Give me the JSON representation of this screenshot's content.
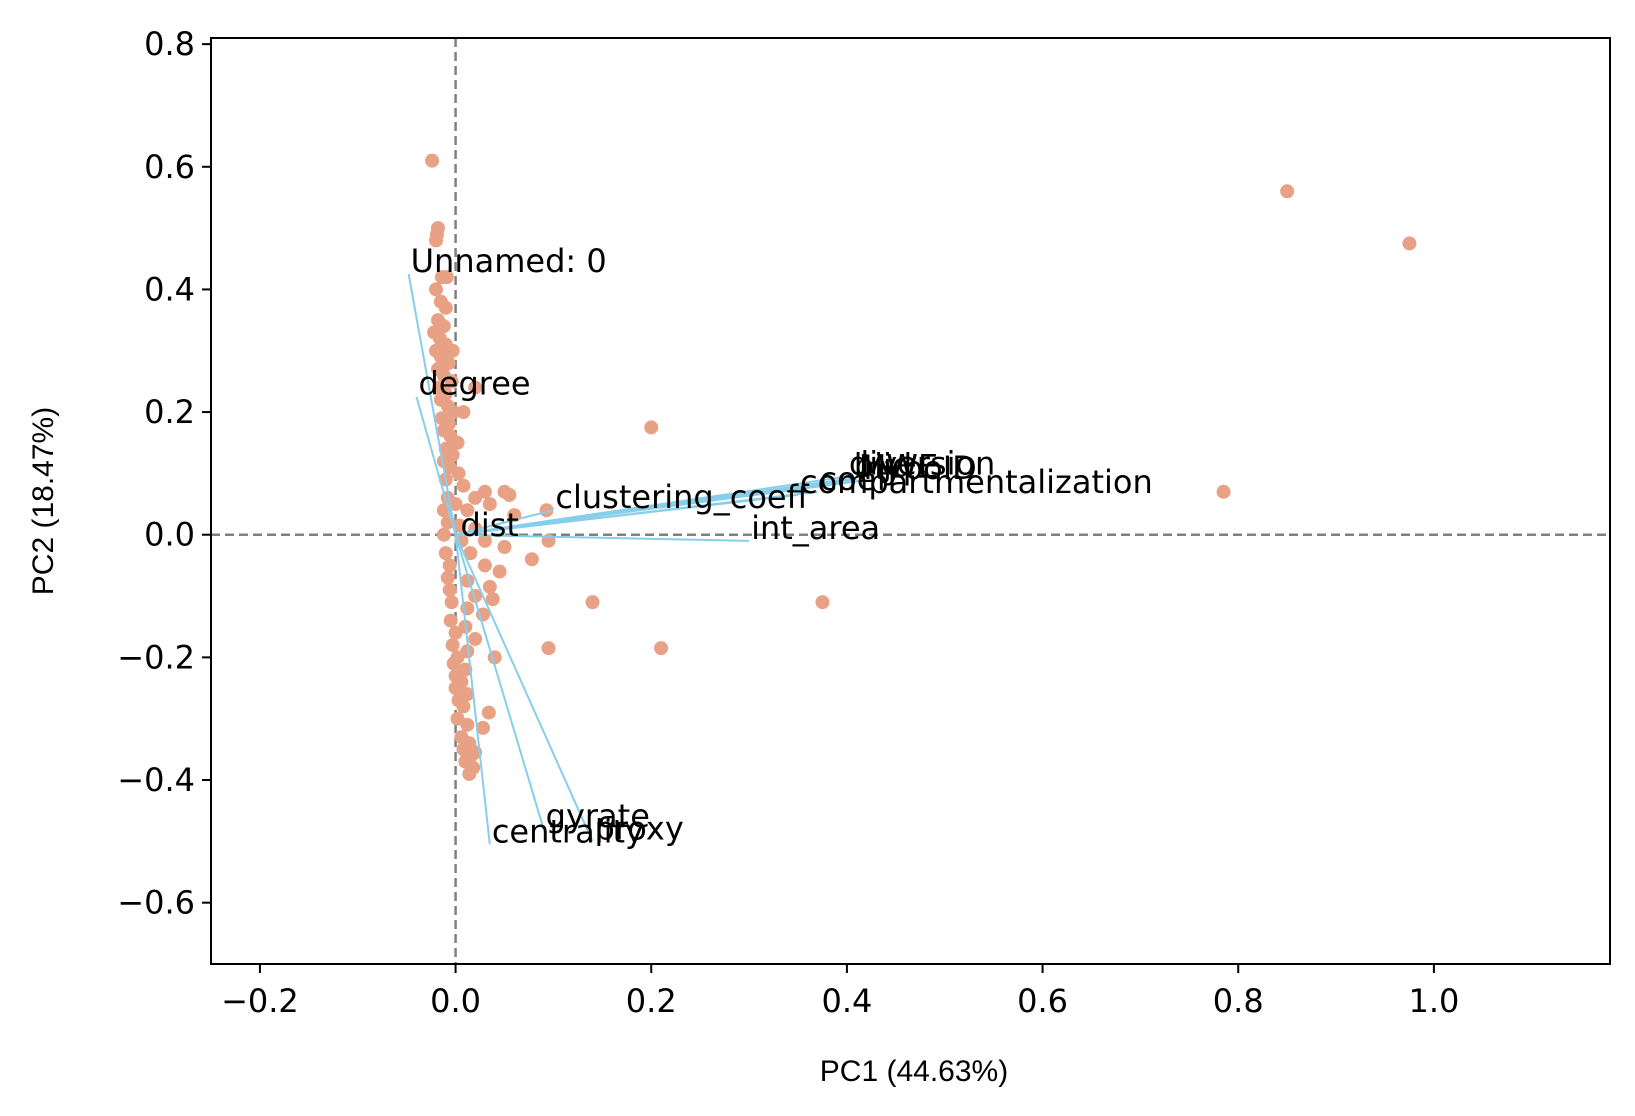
{
  "chart_data": {
    "type": "scatter",
    "title": "",
    "xlabel": "PC1 (44.63%)",
    "ylabel": "PC2 (18.47%)",
    "xlim": [
      -0.25,
      1.18
    ],
    "ylim": [
      -0.7,
      0.81
    ],
    "xticks": [
      -0.2,
      0.0,
      0.2,
      0.4,
      0.6,
      0.8,
      1.0
    ],
    "xtick_labels": [
      "−0.2",
      "0.0",
      "0.2",
      "0.4",
      "0.6",
      "0.8",
      "1.0"
    ],
    "yticks": [
      -0.6,
      -0.4,
      -0.2,
      0.0,
      0.2,
      0.4,
      0.6,
      0.8
    ],
    "ytick_labels": [
      "−0.6",
      "−0.4",
      "−0.2",
      "0.0",
      "0.2",
      "0.4",
      "0.6",
      "0.8"
    ],
    "grid": false,
    "reference_lines": {
      "x": 0.0,
      "y": 0.0,
      "style": "dashed",
      "color": "#808080"
    },
    "colors": {
      "points": "#E9A185",
      "vectors": "#87CEEB"
    },
    "series": [
      {
        "kind": "scores",
        "points": [
          [
            -0.024,
            0.61
          ],
          [
            -0.018,
            0.5
          ],
          [
            -0.019,
            0.49
          ],
          [
            -0.02,
            0.48
          ],
          [
            -0.014,
            0.42
          ],
          [
            -0.009,
            0.42
          ],
          [
            -0.02,
            0.4
          ],
          [
            -0.015,
            0.38
          ],
          [
            -0.01,
            0.37
          ],
          [
            -0.018,
            0.35
          ],
          [
            -0.012,
            0.34
          ],
          [
            -0.022,
            0.33
          ],
          [
            -0.016,
            0.32
          ],
          [
            -0.01,
            0.31
          ],
          [
            -0.003,
            0.3
          ],
          [
            -0.02,
            0.3
          ],
          [
            -0.015,
            0.29
          ],
          [
            -0.007,
            0.28
          ],
          [
            -0.018,
            0.27
          ],
          [
            -0.012,
            0.26
          ],
          [
            -0.004,
            0.25
          ],
          [
            -0.017,
            0.24
          ],
          [
            -0.01,
            0.23
          ],
          [
            0.02,
            0.24
          ],
          [
            -0.015,
            0.22
          ],
          [
            -0.008,
            0.21
          ],
          [
            -0.002,
            0.2
          ],
          [
            0.008,
            0.2
          ],
          [
            -0.014,
            0.19
          ],
          [
            -0.007,
            0.18
          ],
          [
            -0.012,
            0.17
          ],
          [
            -0.005,
            0.16
          ],
          [
            0.002,
            0.15
          ],
          [
            -0.01,
            0.14
          ],
          [
            -0.003,
            0.13
          ],
          [
            -0.012,
            0.12
          ],
          [
            -0.006,
            0.11
          ],
          [
            0.003,
            0.1
          ],
          [
            -0.01,
            0.09
          ],
          [
            0.008,
            0.08
          ],
          [
            0.03,
            0.07
          ],
          [
            0.05,
            0.07
          ],
          [
            0.055,
            0.065
          ],
          [
            0.02,
            0.06
          ],
          [
            -0.008,
            0.06
          ],
          [
            0.0,
            0.05
          ],
          [
            0.035,
            0.05
          ],
          [
            -0.012,
            0.04
          ],
          [
            0.012,
            0.04
          ],
          [
            0.06,
            0.032
          ],
          [
            -0.008,
            0.02
          ],
          [
            0.004,
            0.015
          ],
          [
            0.02,
            0.01
          ],
          [
            -0.012,
            0.0
          ],
          [
            0.006,
            -0.01
          ],
          [
            0.03,
            -0.01
          ],
          [
            0.05,
            -0.02
          ],
          [
            -0.01,
            -0.03
          ],
          [
            0.015,
            -0.03
          ],
          [
            0.078,
            -0.04
          ],
          [
            -0.006,
            -0.05
          ],
          [
            0.03,
            -0.05
          ],
          [
            0.045,
            -0.06
          ],
          [
            -0.008,
            -0.07
          ],
          [
            0.012,
            -0.075
          ],
          [
            0.035,
            -0.085
          ],
          [
            -0.006,
            -0.09
          ],
          [
            0.02,
            -0.1
          ],
          [
            0.038,
            -0.105
          ],
          [
            -0.004,
            -0.11
          ],
          [
            0.012,
            -0.12
          ],
          [
            0.028,
            -0.13
          ],
          [
            -0.005,
            -0.14
          ],
          [
            0.01,
            -0.15
          ],
          [
            0.0,
            -0.16
          ],
          [
            0.02,
            -0.17
          ],
          [
            -0.003,
            -0.18
          ],
          [
            0.012,
            -0.19
          ],
          [
            0.002,
            -0.2
          ],
          [
            0.04,
            -0.2
          ],
          [
            -0.002,
            -0.21
          ],
          [
            0.01,
            -0.22
          ],
          [
            0.0,
            -0.23
          ],
          [
            0.006,
            -0.24
          ],
          [
            0.0,
            -0.25
          ],
          [
            0.012,
            -0.26
          ],
          [
            0.003,
            -0.27
          ],
          [
            0.008,
            -0.28
          ],
          [
            0.034,
            -0.29
          ],
          [
            0.002,
            -0.3
          ],
          [
            0.012,
            -0.31
          ],
          [
            0.028,
            -0.315
          ],
          [
            0.006,
            -0.33
          ],
          [
            0.014,
            -0.34
          ],
          [
            0.008,
            -0.35
          ],
          [
            0.016,
            -0.36
          ],
          [
            0.01,
            -0.37
          ],
          [
            0.018,
            -0.38
          ],
          [
            0.014,
            -0.39
          ],
          [
            0.02,
            -0.355
          ],
          [
            0.093,
            0.04
          ],
          [
            0.095,
            -0.01
          ],
          [
            0.2,
            0.175
          ],
          [
            0.14,
            -0.11
          ],
          [
            0.095,
            -0.185
          ],
          [
            0.21,
            -0.185
          ],
          [
            0.375,
            -0.11
          ],
          [
            0.785,
            0.07
          ],
          [
            0.85,
            0.56
          ],
          [
            0.975,
            0.475
          ]
        ]
      }
    ],
    "loadings": [
      {
        "label": "Unnamed: 0",
        "x": -0.048,
        "y": 0.425
      },
      {
        "label": "degree",
        "x": -0.04,
        "y": 0.225
      },
      {
        "label": "clustering_coeff",
        "x": 0.1,
        "y": 0.04
      },
      {
        "label": "int_area",
        "x": 0.3,
        "y": -0.01
      },
      {
        "label": "dist",
        "x": 0.003,
        "y": -0.005
      },
      {
        "label": "compartmentalization",
        "x": 0.35,
        "y": 0.065
      },
      {
        "label": "coeff",
        "x": 0.37,
        "y": 0.07
      },
      {
        "label": "diversion",
        "x": 0.4,
        "y": 0.095
      },
      {
        "label": "bijd",
        "x": 0.405,
        "y": 0.092
      },
      {
        "label": "MWE",
        "x": 0.41,
        "y": 0.09
      },
      {
        "label": "hypoID",
        "x": 0.415,
        "y": 0.088
      },
      {
        "label": "gyrate",
        "x": 0.09,
        "y": -0.48
      },
      {
        "label": "proxy",
        "x": 0.14,
        "y": -0.5
      },
      {
        "label": "centrality",
        "x": 0.035,
        "y": -0.505
      }
    ]
  }
}
